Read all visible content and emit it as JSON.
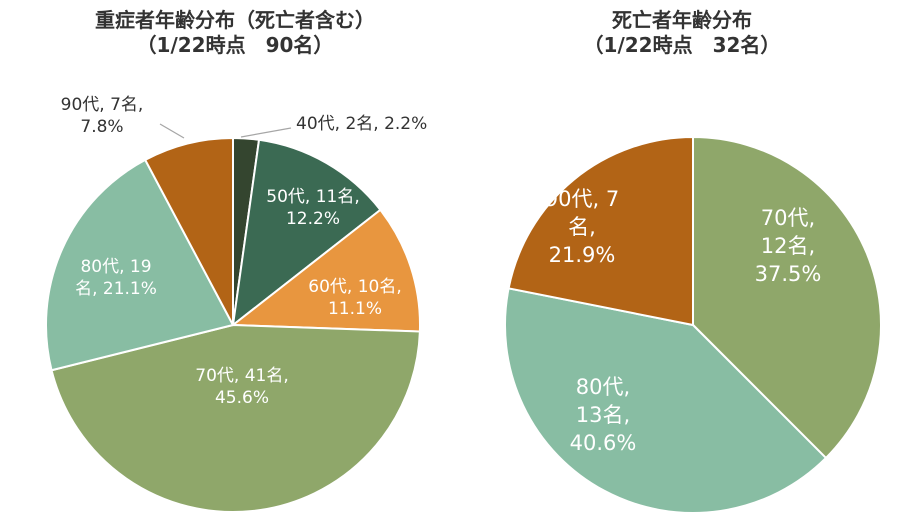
{
  "colors": {
    "age_40s": "#34452f",
    "age_50s": "#3b6a53",
    "age_60s": "#e8963f",
    "age_70s": "#8fa76a",
    "age_80s": "#88bda3",
    "age_90s": "#b26416",
    "label_dark": "#333333",
    "label_light": "#ffffff",
    "leader_line": "#a6a6a6"
  },
  "chart_data": [
    {
      "type": "pie",
      "title": "重症者年齢分布（死亡者含む）",
      "subtitle": "（1/22時点　90名）",
      "slices": [
        {
          "label": "40代",
          "count": 2,
          "percent": 2.2,
          "text_lines": [
            "40代, 2名, 2.2%"
          ],
          "color": "age_40s",
          "label_color": "label_dark"
        },
        {
          "label": "50代",
          "count": 11,
          "percent": 12.2,
          "text_lines": [
            "50代, 11名,",
            "12.2%"
          ],
          "color": "age_50s",
          "label_color": "label_light"
        },
        {
          "label": "60代",
          "count": 10,
          "percent": 11.1,
          "text_lines": [
            "60代, 10名,",
            "11.1%"
          ],
          "color": "age_60s",
          "label_color": "label_light"
        },
        {
          "label": "70代",
          "count": 41,
          "percent": 45.6,
          "text_lines": [
            "70代, 41名,",
            "45.6%"
          ],
          "color": "age_70s",
          "label_color": "label_light"
        },
        {
          "label": "80代",
          "count": 19,
          "percent": 21.1,
          "text_lines": [
            "80代, 19",
            "名, 21.1%"
          ],
          "color": "age_80s",
          "label_color": "label_light"
        },
        {
          "label": "90代",
          "count": 7,
          "percent": 7.8,
          "text_lines": [
            "90代, 7名,",
            "7.8%"
          ],
          "color": "age_90s",
          "label_color": "label_dark"
        }
      ]
    },
    {
      "type": "pie",
      "title": "死亡者年齢分布",
      "subtitle": "（1/22時点　32名）",
      "slices": [
        {
          "label": "70代",
          "count": 12,
          "percent": 37.5,
          "text_lines": [
            "70代,",
            "12名,",
            "37.5%"
          ],
          "color": "age_70s",
          "label_color": "label_light"
        },
        {
          "label": "80代",
          "count": 13,
          "percent": 40.6,
          "text_lines": [
            "80代,",
            "13名,",
            "40.6%"
          ],
          "color": "age_80s",
          "label_color": "label_light"
        },
        {
          "label": "90代",
          "count": 7,
          "percent": 21.9,
          "text_lines": [
            "90代, 7",
            "名,",
            "21.9%"
          ],
          "color": "age_90s",
          "label_color": "label_light"
        }
      ]
    }
  ]
}
